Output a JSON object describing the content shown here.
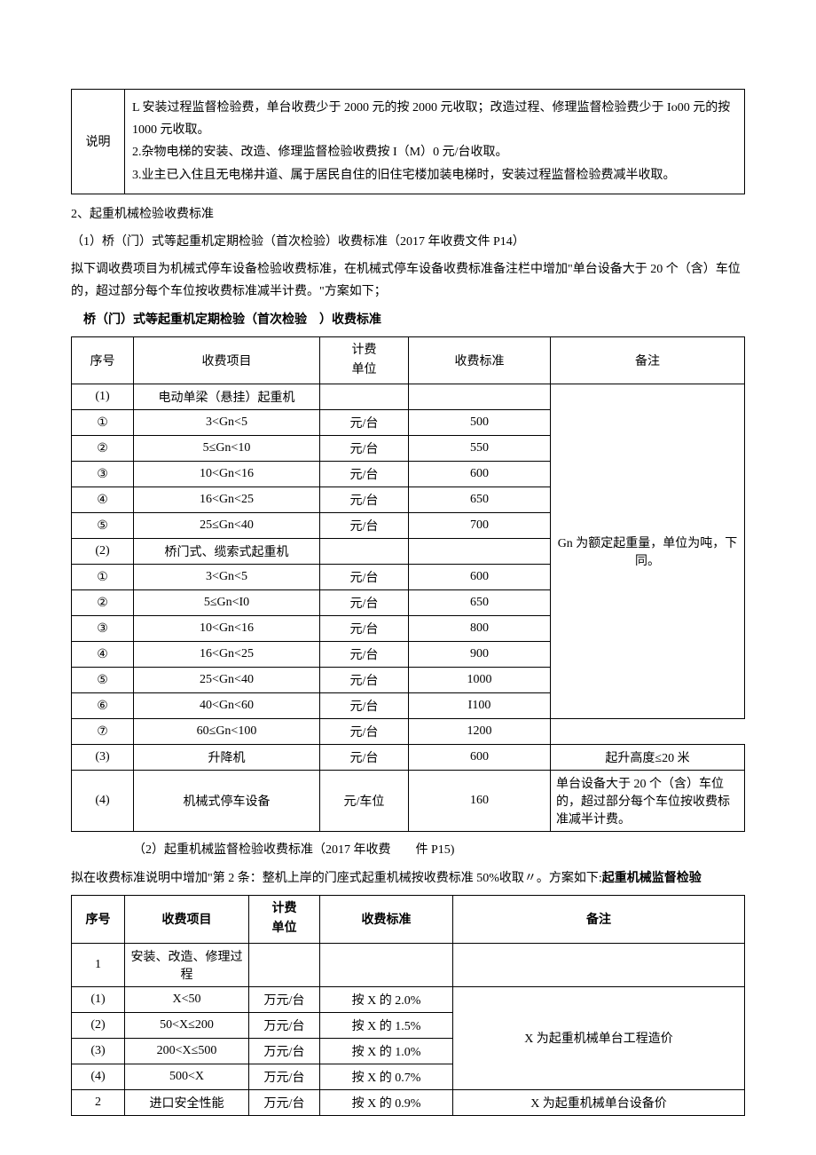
{
  "noteBox": {
    "label": "说明",
    "lines": [
      "L 安装过程监督检验费，单台收费少于 2000 元的按 2000 元收取；改造过程、修理监督检验费少于 Io00 元的按 1000 元收取。",
      "2.杂物电梯的安装、改造、修理监督检验收费按 I（M）0 元/台收取。",
      "3.业主已入住且无电梯井道、属于居民自住的旧住宅楼加装电梯时，安装过程监督检验费减半收取。"
    ]
  },
  "section2": {
    "title": "2、起重机械检验收费标准",
    "sub1": "（1）桥（门）式等起重机定期检验（首次检验）收费标准（2017 年收费文件 P14）",
    "desc": "拟下调收费项目为机械式停车设备检验收费标准，在机械式停车设备收费标准备注栏中增加\"单台设备大于 20 个（含）车位的，超过部分每个车位按收费标准减半计费。\"方案如下；",
    "table1Title": "桥（门）式等起重机定期检验（首次检验　）收费标准"
  },
  "table1": {
    "headers": {
      "seq": "序号",
      "item": "收费项目",
      "unit": "计费\n单位",
      "fee": "收费标准",
      "remark": "备注"
    },
    "groups": [
      {
        "headerRow": {
          "seq": "(1)",
          "item": "电动单梁（悬挂）起重机",
          "unit": "",
          "fee": ""
        },
        "remarkSpan": "Gn 为额定起重量，单位为吨，下同。",
        "rows": [
          {
            "seq": "①",
            "item": "3<Gn<5",
            "unit": "元/台",
            "fee": "500"
          },
          {
            "seq": "②",
            "item": "5≤Gn<10",
            "unit": "元/台",
            "fee": "550"
          },
          {
            "seq": "③",
            "item": "10<Gn<16",
            "unit": "元/台",
            "fee": "600"
          },
          {
            "seq": "④",
            "item": "16<Gn<25",
            "unit": "元/台",
            "fee": "650"
          },
          {
            "seq": "⑤",
            "item": "25≤Gn<40",
            "unit": "元/台",
            "fee": "700"
          }
        ]
      },
      {
        "headerRow": {
          "seq": "(2)",
          "item": "桥门式、缆索式起重机",
          "unit": "",
          "fee": ""
        },
        "rows": [
          {
            "seq": "①",
            "item": "3<Gn<5",
            "unit": "元/台",
            "fee": "600"
          },
          {
            "seq": "②",
            "item": "5≤Gn<I0",
            "unit": "元/台",
            "fee": "650"
          },
          {
            "seq": "③",
            "item": "10<Gn<16",
            "unit": "元/台",
            "fee": "800"
          },
          {
            "seq": "④",
            "item": "16<Gn<25",
            "unit": "元/台",
            "fee": "900"
          },
          {
            "seq": "⑤",
            "item": "25<Gn<40",
            "unit": "元/台",
            "fee": "1000"
          },
          {
            "seq": "⑥",
            "item": "40<Gn<60",
            "unit": "元/台",
            "fee": "I100"
          },
          {
            "seq": "⑦",
            "item": "60≤Gn<100",
            "unit": "元/台",
            "fee": "1200"
          }
        ]
      }
    ],
    "singleRows": [
      {
        "seq": "(3)",
        "item": "升降机",
        "unit": "元/台",
        "fee": "600",
        "remark": "起升高度≤20 米"
      },
      {
        "seq": "(4)",
        "item": "机械式停车设备",
        "unit": "元/车位",
        "fee": "160",
        "remark": "单台设备大于 20 个（含）车位的，超过部分每个车位按收费标准减半计费。"
      }
    ]
  },
  "section3": {
    "sub2": "（2）起重机械监督检验收费标准（2017 年收费　　件 P15)",
    "desc_prefix": "拟在收费标准说明中增加\"第 2 条：整机上岸的门座式起重机械按收费标准 50%收取〃。方案如下:",
    "desc_bold": "起重机械监督检验"
  },
  "table2": {
    "headers": {
      "seq": "序号",
      "item": "收费项目",
      "unit": "计费\n单位",
      "fee": "收费标准",
      "remark": "备注"
    },
    "row1": {
      "seq": "1",
      "item": "安装、改造、修理过程",
      "unit": "",
      "fee": "",
      "remark": ""
    },
    "groupRows": [
      {
        "seq": "(1)",
        "item": "X<50",
        "unit": "万元/台",
        "fee": "按 X 的 2.0%"
      },
      {
        "seq": "(2)",
        "item": "50<X≤200",
        "unit": "万元/台",
        "fee": "按 X 的 1.5%"
      },
      {
        "seq": "(3)",
        "item": "200<X≤500",
        "unit": "万元/台",
        "fee": "按 X 的 1.0%"
      },
      {
        "seq": "(4)",
        "item": "500<X",
        "unit": "万元/台",
        "fee": "按 X 的 0.7%"
      }
    ],
    "groupRemark": "X 为起重机械单台工程造价",
    "row2": {
      "seq": "2",
      "item": "进口安全性能",
      "unit": "万元/台",
      "fee": "按 X 的 0.9%",
      "remark": "X 为起重机械单台设备价"
    }
  }
}
